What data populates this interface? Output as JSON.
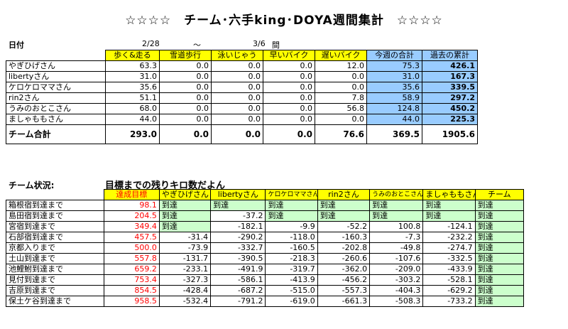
{
  "title": "☆☆☆☆　チーム･六手king･DOYA週間集計　☆☆☆☆",
  "period": {
    "label": "日付",
    "start": "2/28",
    "sep": "～",
    "end": "3/6",
    "suffix": "間"
  },
  "weekly": {
    "headers": [
      "",
      "歩く&走る",
      "雪道歩行",
      "泳いじゃう",
      "早いバイク",
      "遅いバイク",
      "今週の合計",
      "過去の累計"
    ],
    "rows": [
      [
        "やぎひげさん",
        "63.3",
        "0.0",
        "0.0",
        "0.0",
        "12.0",
        "75.3",
        "426.1"
      ],
      [
        "libertyさん",
        "31.0",
        "0.0",
        "0.0",
        "0.0",
        "0.0",
        "31.0",
        "167.3"
      ],
      [
        "ケロケロママさん",
        "35.6",
        "0.0",
        "0.0",
        "0.0",
        "0.0",
        "35.6",
        "339.5"
      ],
      [
        "rin2さん",
        "51.1",
        "0.0",
        "0.0",
        "0.0",
        "7.8",
        "58.9",
        "297.2"
      ],
      [
        "うみのおとこさん",
        "68.0",
        "0.0",
        "0.0",
        "0.0",
        "56.8",
        "124.8",
        "450.2"
      ],
      [
        "ましゃももさん",
        "44.0",
        "0.0",
        "0.0",
        "0.0",
        "0.0",
        "44.0",
        "225.3"
      ]
    ],
    "total": [
      "チーム合計",
      "293.0",
      "0.0",
      "0.0",
      "0.0",
      "76.6",
      "369.5",
      "1905.6"
    ]
  },
  "status": {
    "label": "チーム状況:",
    "subtitle": "目標までの残りキロ数だよん",
    "headers": [
      "",
      "達成目標",
      "やぎひげさん",
      "libertyさん",
      "ケロケロママさん",
      "rin2さん",
      "うみのおとこさん",
      "ましゃももさん",
      "チーム"
    ],
    "rows": [
      [
        "箱根宿到達まで",
        "98.1",
        "到達",
        "到達",
        "到達",
        "到達",
        "到達",
        "到達",
        "到達"
      ],
      [
        "島田宿到達まで",
        "204.5",
        "到達",
        "-37.2",
        "到達",
        "到達",
        "到達",
        "到達",
        "到達"
      ],
      [
        "宮宿到達まで",
        "349.4",
        "到達",
        "-182.1",
        "-9.9",
        "-52.2",
        "100.8",
        "-124.1",
        "到達"
      ],
      [
        "石部宿到達まで",
        "457.5",
        "-31.4",
        "-290.2",
        "-118.0",
        "-160.3",
        "-7.3",
        "-232.2",
        "到達"
      ],
      [
        "京都入りまで",
        "500.0",
        "-73.9",
        "-332.7",
        "-160.5",
        "-202.8",
        "-49.8",
        "-274.7",
        "到達"
      ],
      [
        "土山到達まで",
        "557.8",
        "-131.7",
        "-390.5",
        "-218.3",
        "-260.6",
        "-107.6",
        "-332.5",
        "到達"
      ],
      [
        "池鯉鮒到達まで",
        "659.2",
        "-233.1",
        "-491.9",
        "-319.7",
        "-362.0",
        "-209.0",
        "-433.9",
        "到達"
      ],
      [
        "見付到達まで",
        "753.4",
        "-327.3",
        "-586.1",
        "-413.9",
        "-456.2",
        "-303.2",
        "-528.1",
        "到達"
      ],
      [
        "吉原到達まで",
        "854.5",
        "-428.4",
        "-687.2",
        "-515.0",
        "-557.3",
        "-404.3",
        "-629.2",
        "到達"
      ],
      [
        "保土ケ谷到達まで",
        "958.5",
        "-532.4",
        "-791.2",
        "-619.0",
        "-661.3",
        "-508.3",
        "-733.2",
        "到達"
      ]
    ]
  }
}
